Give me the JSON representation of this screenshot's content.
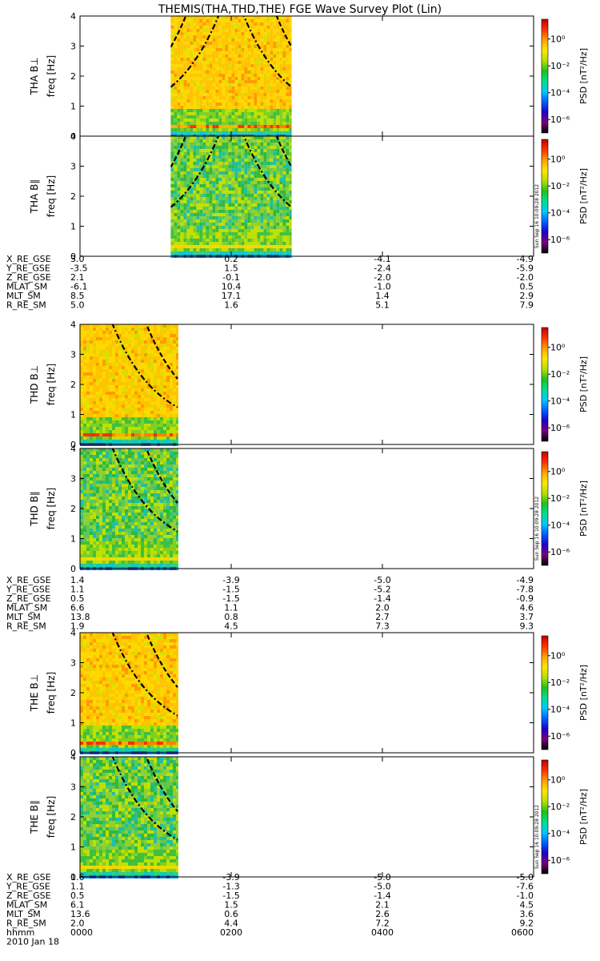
{
  "chart_data": {
    "type": "heatmap",
    "title": "THEMIS(THA,THD,THE) FGE Wave Survey Plot (Lin)",
    "timestamp": "Sun Sep 16 10:09:28 2012",
    "colorbar": {
      "label": "PSD [nT²/Hz]",
      "scale": "log",
      "range": [
        1e-07,
        30
      ],
      "ticks": [
        {
          "label": "10⁰",
          "value": 1
        },
        {
          "label": "10⁻²",
          "value": 0.01
        },
        {
          "label": "10⁻⁴",
          "value": 0.0001
        },
        {
          "label": "10⁻⁶",
          "value": 1e-06
        }
      ],
      "colors": [
        "#000000",
        "#7a007a",
        "#1e00c8",
        "#0060ff",
        "#00c8ff",
        "#00e08a",
        "#20c020",
        "#b8e000",
        "#ffe600",
        "#ffa000",
        "#ff3000",
        "#c00000"
      ]
    },
    "x": {
      "label": "hhmm",
      "ticks": [
        "0000",
        "0200",
        "0400",
        "0600"
      ],
      "range_hours": [
        0,
        6
      ],
      "date": "2010 Jan 18"
    },
    "y": {
      "label": "freq [Hz]",
      "range": [
        0,
        4
      ],
      "ticks": [
        "0",
        "1",
        "2",
        "3",
        "4"
      ]
    },
    "probes": [
      {
        "name": "THA",
        "panels": [
          {
            "label": "THA B⊥",
            "data_start_hours": 1.2,
            "data_end_hours": 2.8,
            "cyclotron_center_hours": 2.0
          },
          {
            "label": "THA B∥",
            "data_start_hours": 1.2,
            "data_end_hours": 2.8,
            "cyclotron_center_hours": 2.0
          }
        ],
        "ephemeris": {
          "labels": [
            "X_RE_GSE",
            "Y_RE_GSE",
            "Z_RE_GSE",
            "MLAT_SM",
            "MLT_SM",
            "R_RE_SM"
          ],
          "columns": [
            [
              "3.0",
              "-3.5",
              "2.1",
              "-6.1",
              "8.5",
              "5.0"
            ],
            [
              "0.2",
              "1.5",
              "-0.1",
              "10.4",
              "17.1",
              "1.6"
            ],
            [
              "-4.1",
              "-2.4",
              "-2.0",
              "-1.0",
              "1.4",
              "5.1"
            ],
            [
              "-4.9",
              "-5.9",
              "-2.0",
              "0.5",
              "2.9",
              "7.9"
            ]
          ]
        }
      },
      {
        "name": "THD",
        "panels": [
          {
            "label": "THD B⊥",
            "data_start_hours": 0.0,
            "data_end_hours": 1.3,
            "cyclotron_center_hours": 0.0
          },
          {
            "label": "THD B∥",
            "data_start_hours": 0.0,
            "data_end_hours": 1.3,
            "cyclotron_center_hours": 0.0
          }
        ],
        "ephemeris": {
          "labels": [
            "X_RE_GSE",
            "Y_RE_GSE",
            "Z_RE_GSE",
            "MLAT_SM",
            "MLT_SM",
            "R_RE_SM"
          ],
          "columns": [
            [
              "1.4",
              "1.1",
              "0.5",
              "6.6",
              "13.8",
              "1.9"
            ],
            [
              "-3.9",
              "-1.5",
              "-1.5",
              "1.1",
              "0.8",
              "4.5"
            ],
            [
              "-5.0",
              "-5.2",
              "-1.4",
              "2.0",
              "2.7",
              "7.3"
            ],
            [
              "-4.9",
              "-7.8",
              "-0.9",
              "4.6",
              "3.7",
              "9.3"
            ]
          ]
        }
      },
      {
        "name": "THE",
        "panels": [
          {
            "label": "THE B⊥",
            "data_start_hours": 0.0,
            "data_end_hours": 1.3,
            "cyclotron_center_hours": 0.0
          },
          {
            "label": "THE B∥",
            "data_start_hours": 0.0,
            "data_end_hours": 1.3,
            "cyclotron_center_hours": 0.0
          }
        ],
        "ephemeris": {
          "labels": [
            "X_RE_GSE",
            "Y_RE_GSE",
            "Z_RE_GSE",
            "MLAT_SM",
            "MLT_SM",
            "R_RE_SM"
          ],
          "columns": [
            [
              "1.6",
              "1.1",
              "0.5",
              "6.1",
              "13.6",
              "2.0"
            ],
            [
              "-3.9",
              "-1.3",
              "-1.5",
              "1.5",
              "0.6",
              "4.4"
            ],
            [
              "-5.0",
              "-5.0",
              "-1.4",
              "2.1",
              "2.6",
              "7.2"
            ],
            [
              "-5.0",
              "-7.6",
              "-1.0",
              "4.5",
              "3.6",
              "9.2"
            ]
          ]
        }
      }
    ]
  }
}
